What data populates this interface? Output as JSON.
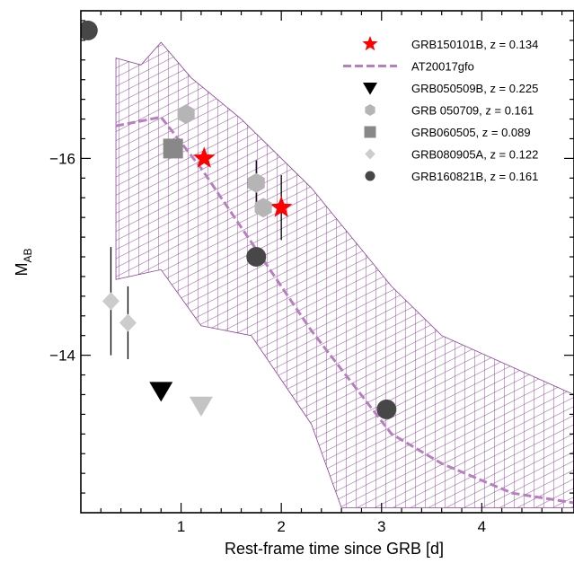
{
  "chart_data": {
    "type": "scatter",
    "xlabel": "Rest-frame time since GRB [d]",
    "ylabel": {
      "main": "M",
      "sub": "AB"
    },
    "xlim": [
      0.0,
      4.92
    ],
    "ylim": [
      -12.4,
      -17.5
    ],
    "y_inverted": true,
    "x_ticks": [
      "1",
      "2",
      "3",
      "4"
    ],
    "x_tick_values": [
      1,
      2,
      3,
      4
    ],
    "y_ticks": [
      "-16",
      "-14"
    ],
    "y_tick_values": [
      -16,
      -14
    ],
    "grid": false,
    "legend_position": "top-right",
    "colors": {
      "red": "#ff0000",
      "model": "#b87fc0",
      "hatch": "#8a3d99",
      "black": "#000000",
      "gray": "#888888",
      "light_gray": "#b5b5b5",
      "lighter_gray": "#cccccc",
      "dark_gray": "#474747"
    },
    "legend": [
      {
        "label": "GRB150101B, z = 0.134",
        "marker": "star",
        "color": "#ff0000"
      },
      {
        "label": "AT20017gfo",
        "marker": "dashed-line",
        "color": "#b87fc0"
      },
      {
        "label": "GRB050509B, z = 0.225",
        "marker": "triangle-down",
        "color": "#000000"
      },
      {
        "label": "GRB 050709, z = 0.161",
        "marker": "hexagon",
        "color": "#b5b5b5"
      },
      {
        "label": "GRB060505, z = 0.089",
        "marker": "square",
        "color": "#888888"
      },
      {
        "label": "GRB080905A, z = 0.122",
        "marker": "diamond",
        "color": "#cccccc"
      },
      {
        "label": "GRB160821B, z = 0.161",
        "marker": "circle",
        "color": "#474747"
      }
    ],
    "model": {
      "name": "AT20017gfo",
      "median": [
        [
          0.35,
          -16.33
        ],
        [
          0.8,
          -16.42
        ],
        [
          1.2,
          -15.9
        ],
        [
          1.7,
          -15.15
        ],
        [
          2.3,
          -14.25
        ],
        [
          3.1,
          -13.2
        ],
        [
          3.6,
          -12.9
        ],
        [
          4.3,
          -12.6
        ],
        [
          4.92,
          -12.5
        ]
      ],
      "upper": [
        [
          0.35,
          -17.02
        ],
        [
          0.6,
          -16.95
        ],
        [
          0.8,
          -17.18
        ],
        [
          1.1,
          -16.82
        ],
        [
          1.6,
          -16.4
        ],
        [
          2.3,
          -15.7
        ],
        [
          3.1,
          -14.7
        ],
        [
          3.6,
          -14.2
        ],
        [
          4.92,
          -13.6
        ]
      ],
      "lower": [
        [
          0.35,
          -14.77
        ],
        [
          0.8,
          -14.87
        ],
        [
          1.2,
          -14.3
        ],
        [
          1.7,
          -14.2
        ],
        [
          2.3,
          -13.3
        ],
        [
          2.6,
          -12.45
        ],
        [
          4.92,
          -12.45
        ]
      ]
    },
    "series": [
      {
        "name": "GRB150101B, z = 0.134",
        "marker": "star",
        "color": "#ff0000",
        "points": [
          {
            "x": 1.23,
            "y": -16.0,
            "err": 0.0
          },
          {
            "x": 2.0,
            "y": -15.5,
            "err": 0.33
          }
        ]
      },
      {
        "name": "GRB050509B, z = 0.225",
        "marker": "triangle-down",
        "color": "#000000",
        "points": [
          {
            "x": 0.8,
            "y": -13.64,
            "err": 0.0
          }
        ]
      },
      {
        "name": "GRB050509B, z = 0.225",
        "marker": "triangle-down",
        "color": "#c4c4c4",
        "points": [
          {
            "x": 1.2,
            "y": -13.49,
            "err": 0.0
          }
        ]
      },
      {
        "name": "GRB 050709, z = 0.161",
        "marker": "hexagon",
        "color": "#b5b5b5",
        "points": [
          {
            "x": 1.05,
            "y": -16.45,
            "err": 0.0
          },
          {
            "x": 1.75,
            "y": -15.75,
            "err": 0.23
          },
          {
            "x": 1.82,
            "y": -15.5,
            "err": 0.0
          }
        ]
      },
      {
        "name": "GRB060505, z = 0.089",
        "marker": "square",
        "color": "#888888",
        "points": [
          {
            "x": 0.92,
            "y": -16.1,
            "err": 0.0
          }
        ]
      },
      {
        "name": "GRB080905A, z = 0.122",
        "marker": "diamond",
        "color": "#cccccc",
        "points": [
          {
            "x": 0.3,
            "y": -14.55,
            "err": 0.55
          },
          {
            "x": 0.47,
            "y": -14.33,
            "err": 0.37
          }
        ]
      },
      {
        "name": "GRB160821B, z = 0.161",
        "marker": "circle",
        "color": "#474747",
        "points": [
          {
            "x": 0.07,
            "y": -17.3,
            "err": 0.0
          },
          {
            "x": 1.75,
            "y": -15.0,
            "err": 0.0
          },
          {
            "x": 3.05,
            "y": -13.45,
            "err": 0.0
          }
        ]
      }
    ]
  }
}
